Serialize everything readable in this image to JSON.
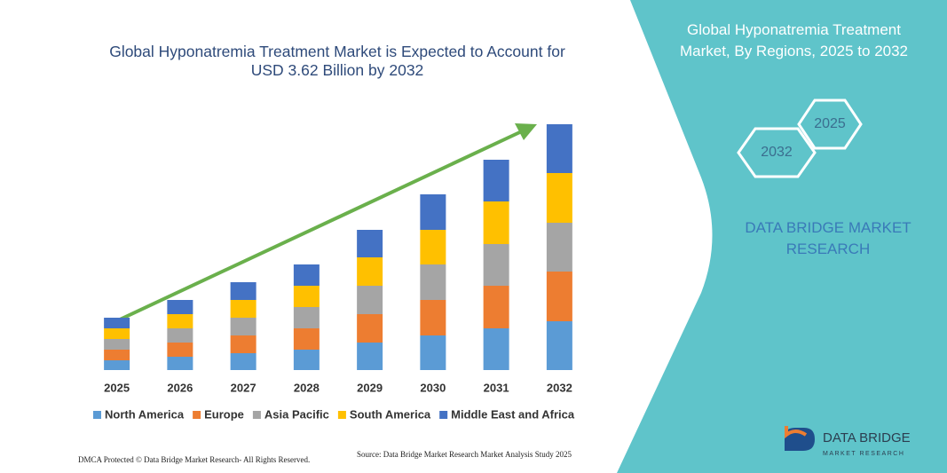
{
  "chart_data": {
    "type": "stacked_bar",
    "title": "Global Hyponatremia Treatment Market is Expected to Account for USD 3.62 Billion by 2032",
    "categories": [
      "2025",
      "2026",
      "2027",
      "2028",
      "2029",
      "2030",
      "2031",
      "2032"
    ],
    "series": [
      {
        "name": "North America",
        "color": "#5b9bd5",
        "values": [
          11,
          15,
          19,
          23,
          31,
          39,
          47,
          55
        ]
      },
      {
        "name": "Europe",
        "color": "#ed7d31",
        "values": [
          12,
          16,
          20,
          24,
          32,
          40,
          48,
          56
        ]
      },
      {
        "name": "Asia Pacific",
        "color": "#a5a5a5",
        "values": [
          12,
          16,
          20,
          24,
          32,
          40,
          47,
          55
        ]
      },
      {
        "name": "South America",
        "color": "#ffc000",
        "values": [
          12,
          16,
          20,
          24,
          32,
          39,
          48,
          56
        ]
      },
      {
        "name": "Middle East and Africa",
        "color": "#4472c4",
        "values": [
          12,
          16,
          20,
          24,
          31,
          40,
          47,
          55
        ]
      }
    ],
    "ylim": [
      0,
      277
    ],
    "grid": false,
    "legend": "bottom"
  },
  "panel": {
    "title": "Global Hyponatremia Treatment Market, By Regions, 2025 to 2032",
    "hexagons": [
      "2025",
      "2032"
    ],
    "brand": "DATA BRIDGE MARKET RESEARCH"
  },
  "logo": {
    "name": "DATA BRIDGE",
    "tagline": "MARKET RESEARCH"
  },
  "footer": {
    "dmca": "DMCA Protected © Data Bridge Market Research- All Rights Reserved.",
    "source": "Source: Data Bridge Market Research  Market Analysis Study 2025"
  }
}
